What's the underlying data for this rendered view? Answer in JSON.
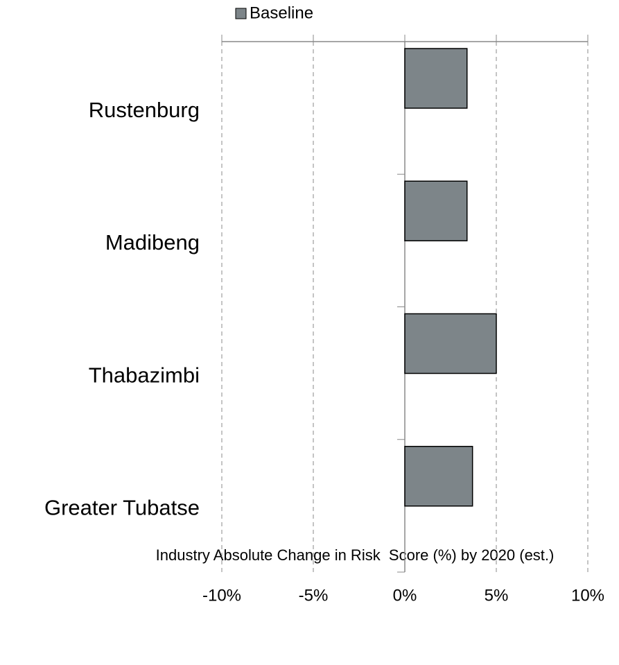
{
  "chart_data": {
    "type": "barh",
    "categories": [
      "Rustenburg",
      "Madibeng",
      "Thabazimbi",
      "Greater Tubatse"
    ],
    "series": [
      {
        "name": "Baseline",
        "color": "#7d8589",
        "values": [
          3.4,
          3.4,
          5.0,
          3.7
        ]
      }
    ],
    "xlim": [
      -10,
      10
    ],
    "xticks": [
      {
        "value": -10,
        "label": "-10%"
      },
      {
        "value": -5,
        "label": "-5%"
      },
      {
        "value": 0,
        "label": "0%"
      },
      {
        "value": 5,
        "label": "5%"
      },
      {
        "value": 10,
        "label": "10%"
      }
    ],
    "xlabel": "Industry Absolute Change in Risk  Score (%) by 2020 (est.)",
    "grid": true,
    "legend": "top"
  }
}
